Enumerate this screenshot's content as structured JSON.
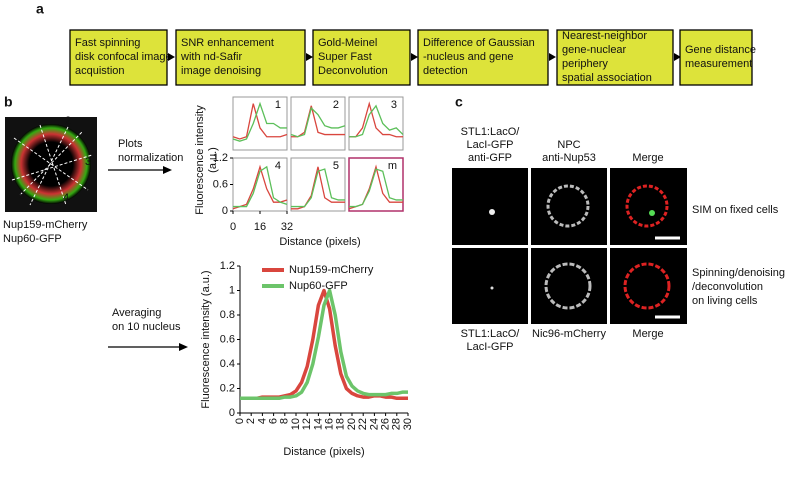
{
  "panel_a": {
    "label": "a",
    "steps": [
      [
        "Fast spinning",
        "disk confocal image",
        "acquistion"
      ],
      [
        "SNR enhancement",
        "with nd-Safir",
        "image denoising"
      ],
      [
        "Gold-Meinel",
        "Super Fast",
        "Deconvolution"
      ],
      [
        "Difference of Gaussian",
        "-nucleus and gene",
        "detection"
      ],
      [
        "Nearest-neighbor",
        "gene-nuclear",
        "periphery",
        "spatial association"
      ],
      [
        "Gene distance",
        "measurement"
      ]
    ]
  },
  "panel_b": {
    "label": "b",
    "line_labels": [
      "1",
      "2",
      "3",
      "4",
      "5"
    ],
    "stain_labels": [
      "Nup159-mCherry",
      "Nup60-GFP"
    ],
    "arrow_labels": [
      [
        "Plots",
        "normalization"
      ],
      [
        "Averaging",
        "on 10 nucleus"
      ]
    ]
  },
  "chart_data": [
    {
      "type": "small-multiples",
      "ylabel": [
        "Fluorescence intensity",
        "(a.u.)"
      ],
      "xlabel": "Distance (pixels)",
      "x": [
        0,
        4,
        8,
        12,
        16,
        20,
        24,
        28,
        32
      ],
      "xlim": [
        0,
        32
      ],
      "xticks": [
        0,
        16,
        32
      ],
      "ylim": [
        0,
        1.2
      ],
      "yticks": [
        0,
        0.6,
        1.2
      ],
      "series_colors": [
        "#d9463e",
        "#5cbf5a"
      ],
      "panels": [
        {
          "label": "1",
          "values": [
            [
              0.3,
              0.25,
              0.3,
              1.05,
              0.5,
              0.3,
              0.3,
              0.3,
              0.35
            ],
            [
              0.25,
              0.2,
              0.25,
              0.6,
              1.05,
              0.6,
              0.6,
              0.5,
              0.5
            ]
          ]
        },
        {
          "label": "2",
          "values": [
            [
              0.3,
              0.3,
              0.4,
              1.0,
              0.4,
              0.35,
              0.35,
              0.35,
              0.35
            ],
            [
              0.35,
              0.3,
              0.35,
              0.95,
              0.8,
              0.55,
              0.5,
              0.5,
              0.55
            ]
          ]
        },
        {
          "label": "3",
          "values": [
            [
              0.3,
              0.3,
              0.5,
              1.05,
              0.5,
              0.35,
              0.35,
              0.3,
              0.3
            ],
            [
              0.3,
              0.3,
              0.35,
              0.8,
              1.0,
              0.6,
              0.45,
              0.5,
              0.35
            ]
          ]
        },
        {
          "label": "4",
          "values": [
            [
              0.05,
              0.1,
              0.15,
              0.5,
              1.0,
              0.5,
              0.2,
              0.2,
              0.25
            ],
            [
              0.1,
              0.1,
              0.1,
              0.4,
              0.9,
              1.0,
              0.3,
              0.2,
              0.15
            ]
          ]
        },
        {
          "label": "5",
          "values": [
            [
              0.05,
              0.05,
              0.1,
              0.35,
              1.0,
              0.3,
              0.2,
              0.2,
              0.2
            ],
            [
              0.1,
              0.1,
              0.1,
              0.3,
              0.9,
              0.95,
              0.3,
              0.25,
              0.25
            ]
          ]
        },
        {
          "label": "m",
          "frame_color": "#b0306a",
          "values": [
            [
              0.05,
              0.1,
              0.15,
              0.5,
              1.0,
              0.4,
              0.2,
              0.2,
              0.2
            ],
            [
              0.1,
              0.1,
              0.15,
              0.45,
              0.95,
              0.9,
              0.3,
              0.25,
              0.25
            ]
          ]
        }
      ]
    },
    {
      "type": "line",
      "ylabel": "Fluorescence intensity (a.u.)",
      "xlabel": "Distance (pixels)",
      "x": [
        0,
        1,
        2,
        3,
        4,
        5,
        6,
        7,
        8,
        9,
        10,
        11,
        12,
        13,
        14,
        15,
        16,
        17,
        18,
        19,
        20,
        21,
        22,
        23,
        24,
        25,
        26,
        27,
        28,
        29,
        30
      ],
      "xlim": [
        0,
        30
      ],
      "xticks": [
        0,
        2,
        4,
        6,
        8,
        10,
        12,
        14,
        16,
        18,
        20,
        22,
        24,
        26,
        28,
        30
      ],
      "ylim": [
        0,
        1.2
      ],
      "yticks": [
        0,
        0.2,
        0.4,
        0.6,
        0.8,
        1.0,
        1.2
      ],
      "legend": "upper left",
      "series": [
        {
          "name": "Nup159-mCherry",
          "color": "#d9463e",
          "values": [
            0.12,
            0.12,
            0.12,
            0.12,
            0.13,
            0.13,
            0.13,
            0.13,
            0.14,
            0.15,
            0.18,
            0.25,
            0.38,
            0.6,
            0.88,
            1.0,
            0.85,
            0.55,
            0.32,
            0.2,
            0.16,
            0.14,
            0.13,
            0.13,
            0.14,
            0.14,
            0.13,
            0.13,
            0.12,
            0.12,
            0.12
          ]
        },
        {
          "name": "Nup60-GFP",
          "color": "#6cc46a",
          "values": [
            0.12,
            0.12,
            0.12,
            0.12,
            0.12,
            0.12,
            0.12,
            0.12,
            0.13,
            0.13,
            0.14,
            0.17,
            0.25,
            0.4,
            0.62,
            0.88,
            1.0,
            0.8,
            0.5,
            0.3,
            0.22,
            0.18,
            0.16,
            0.15,
            0.15,
            0.15,
            0.15,
            0.16,
            0.16,
            0.17,
            0.17
          ]
        }
      ]
    }
  ],
  "panel_c": {
    "label": "c",
    "column_headers": [
      [
        "STL1:LacO/",
        "LacI-GFP",
        "anti-GFP"
      ],
      [
        "NPC",
        "anti-Nup53"
      ],
      [
        "Merge"
      ]
    ],
    "row_labels": [
      [
        "SIM on fixed cells"
      ],
      [
        "Spinning/denoising",
        "/deconvolution",
        "on living cells"
      ]
    ],
    "column_footers": [
      [
        "STL1:LacO/",
        "LacI-GFP"
      ],
      [
        "Nic96-mCherry"
      ],
      [
        "Merge"
      ]
    ]
  }
}
